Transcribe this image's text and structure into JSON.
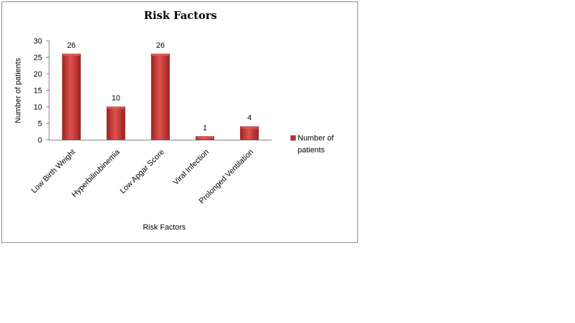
{
  "chart_data": {
    "type": "bar",
    "title": "Risk Factors",
    "xlabel": "Risk Factors",
    "ylabel": "Number of patients",
    "categories": [
      "Low Birth Weight",
      "Hyperbilirubinemia",
      "Low Apgar Score",
      "Viral Infection",
      "Prolonged Ventilation"
    ],
    "series": [
      {
        "name": "Number of patients",
        "values": [
          26,
          10,
          26,
          1,
          4
        ]
      }
    ],
    "ylim": [
      0,
      30
    ],
    "yticks": [
      0,
      5,
      10,
      15,
      20,
      25,
      30
    ],
    "legend_position": "right",
    "grid": false,
    "colors": {
      "bar": "#c0302e",
      "bar_dark": "#8f1d1b",
      "bar_light": "#e25a56"
    }
  }
}
